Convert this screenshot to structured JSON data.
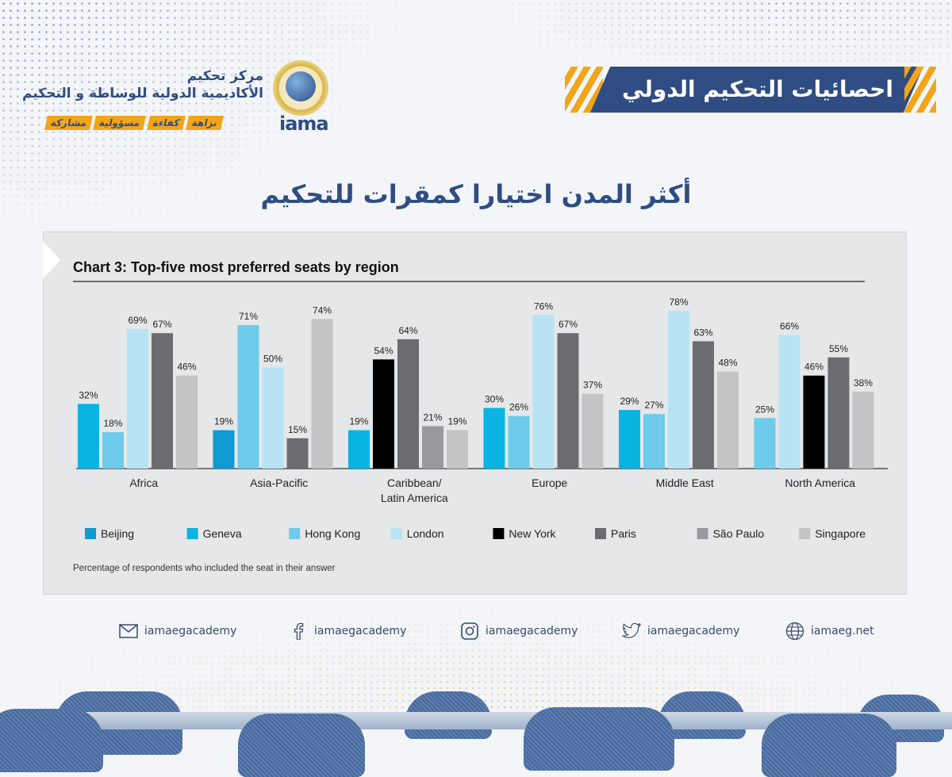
{
  "header": {
    "banner_title": "احصائيات التحكيم الدولي",
    "logo_line1": "مركز تحكيم",
    "logo_line2": "الأكاديمية الدولية للوساطة و التحكيم",
    "logo_name": "iama",
    "tags": [
      "نزاهة",
      "كفاءة",
      "مسؤولية",
      "مشاركة"
    ]
  },
  "subtitle": "أكثر المدن اختيارا كمقرات للتحكيم",
  "chart_data": {
    "type": "bar",
    "title": "Chart 3: Top-five most preferred seats by region",
    "footnote": "Percentage of respondents who included the seat in their answer",
    "ylim": [
      0,
      80
    ],
    "value_suffix": "%",
    "legend_position": "bottom",
    "series_colors": {
      "Beijing": "#0f9bd1",
      "Geneva": "#0ab4e1",
      "Hong Kong": "#6ecbea",
      "London": "#b8e3f5",
      "New York": "#000000",
      "Paris": "#6b6c6f",
      "São Paulo": "#98999c",
      "Singapore": "#c3c4c6"
    },
    "legend": [
      "Beijing",
      "Geneva",
      "Hong Kong",
      "London",
      "New York",
      "Paris",
      "São Paulo",
      "Singapore"
    ],
    "groups": [
      {
        "label": [
          "Africa"
        ],
        "bars": [
          {
            "series": "Geneva",
            "value": 32
          },
          {
            "series": "Hong Kong",
            "value": 18
          },
          {
            "series": "London",
            "value": 69
          },
          {
            "series": "Paris",
            "value": 67
          },
          {
            "series": "Singapore",
            "value": 46
          }
        ]
      },
      {
        "label": [
          "Asia-Pacific"
        ],
        "bars": [
          {
            "series": "Beijing",
            "value": 19
          },
          {
            "series": "Hong Kong",
            "value": 71
          },
          {
            "series": "London",
            "value": 50
          },
          {
            "series": "Paris",
            "value": 15
          },
          {
            "series": "Singapore",
            "value": 74
          }
        ]
      },
      {
        "label": [
          "Caribbean/",
          "Latin America"
        ],
        "bars": [
          {
            "series": "Geneva",
            "value": 19
          },
          {
            "series": "New York",
            "value": 54
          },
          {
            "series": "Paris",
            "value": 64
          },
          {
            "series": "São Paulo",
            "value": 21
          },
          {
            "series": "Singapore",
            "value": 19
          }
        ]
      },
      {
        "label": [
          "Europe"
        ],
        "bars": [
          {
            "series": "Geneva",
            "value": 30
          },
          {
            "series": "Hong Kong",
            "value": 26
          },
          {
            "series": "London",
            "value": 76
          },
          {
            "series": "Paris",
            "value": 67
          },
          {
            "series": "Singapore",
            "value": 37
          }
        ]
      },
      {
        "label": [
          "Middle East"
        ],
        "bars": [
          {
            "series": "Geneva",
            "value": 29
          },
          {
            "series": "Hong Kong",
            "value": 27
          },
          {
            "series": "London",
            "value": 78
          },
          {
            "series": "Paris",
            "value": 63
          },
          {
            "series": "Singapore",
            "value": 48
          }
        ]
      },
      {
        "label": [
          "North America"
        ],
        "bars": [
          {
            "series": "Hong Kong",
            "value": 25
          },
          {
            "series": "London",
            "value": 66
          },
          {
            "series": "New York",
            "value": 46
          },
          {
            "series": "Paris",
            "value": 55
          },
          {
            "series": "Singapore",
            "value": 38
          }
        ]
      }
    ]
  },
  "footer": {
    "email": "iamaegacademy",
    "facebook": "iamaegacademy",
    "instagram": "iamaegacademy",
    "twitter": "iamaegacademy",
    "website": "iamaeg.net"
  },
  "icons": [
    "mail-icon",
    "facebook-icon",
    "instagram-icon",
    "twitter-icon",
    "globe-icon"
  ]
}
